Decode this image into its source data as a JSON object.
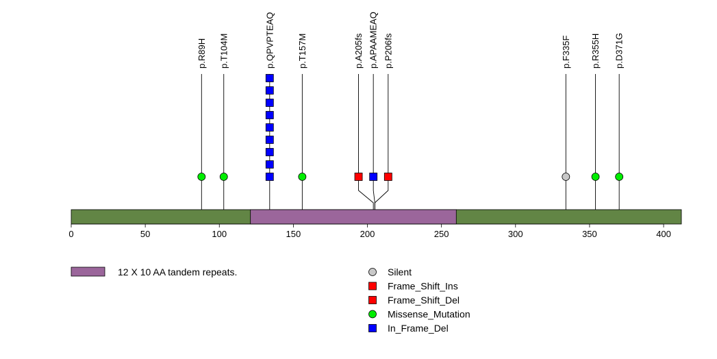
{
  "chart_data": {
    "type": "lollipop",
    "title": "",
    "xlabel": "",
    "ylabel": "",
    "protein_length": 412,
    "xlim": [
      0,
      412
    ],
    "x_ticks": [
      0,
      50,
      100,
      150,
      200,
      250,
      300,
      350,
      400
    ],
    "domains": [
      {
        "name": "12 X 10 AA tandem repeats.",
        "start": 121,
        "end": 260,
        "color": "#9b669b"
      }
    ],
    "backbone_color": "#628545",
    "mutation_types": [
      {
        "name": "Silent",
        "shape": "circle",
        "color": "#c8c8c8"
      },
      {
        "name": "Frame_Shift_Ins",
        "shape": "square",
        "color": "#ff0000"
      },
      {
        "name": "Frame_Shift_Del",
        "shape": "square",
        "color": "#ff0000"
      },
      {
        "name": "Missense_Mutation",
        "shape": "circle",
        "color": "#00ee00"
      },
      {
        "name": "In_Frame_Del",
        "shape": "square",
        "color": "#0000ff"
      }
    ],
    "mutations": [
      {
        "label": "p.R89H",
        "position": 88,
        "type": "Missense_Mutation",
        "count": 1
      },
      {
        "label": "p.T104M",
        "position": 103,
        "type": "Missense_Mutation",
        "count": 1
      },
      {
        "label": "p.QPVPTEAQ",
        "position": 134,
        "type": "In_Frame_Del",
        "count": 9
      },
      {
        "label": "p.T157M",
        "position": 156,
        "type": "Missense_Mutation",
        "count": 1
      },
      {
        "label": "p.A205fs",
        "position": 204,
        "display_position": 194,
        "type": "Frame_Shift_Ins",
        "count": 1
      },
      {
        "label": "p.APAAMEAQ",
        "position": 205,
        "display_position": 204,
        "type": "In_Frame_Del",
        "count": 1
      },
      {
        "label": "p.P206fs",
        "position": 205,
        "display_position": 214,
        "type": "Frame_Shift_Del",
        "count": 1
      },
      {
        "label": "p.F335F",
        "position": 334,
        "type": "Silent",
        "count": 1
      },
      {
        "label": "p.R355H",
        "position": 354,
        "type": "Missense_Mutation",
        "count": 1
      },
      {
        "label": "p.D371G",
        "position": 370,
        "type": "Missense_Mutation",
        "count": 1
      }
    ]
  }
}
